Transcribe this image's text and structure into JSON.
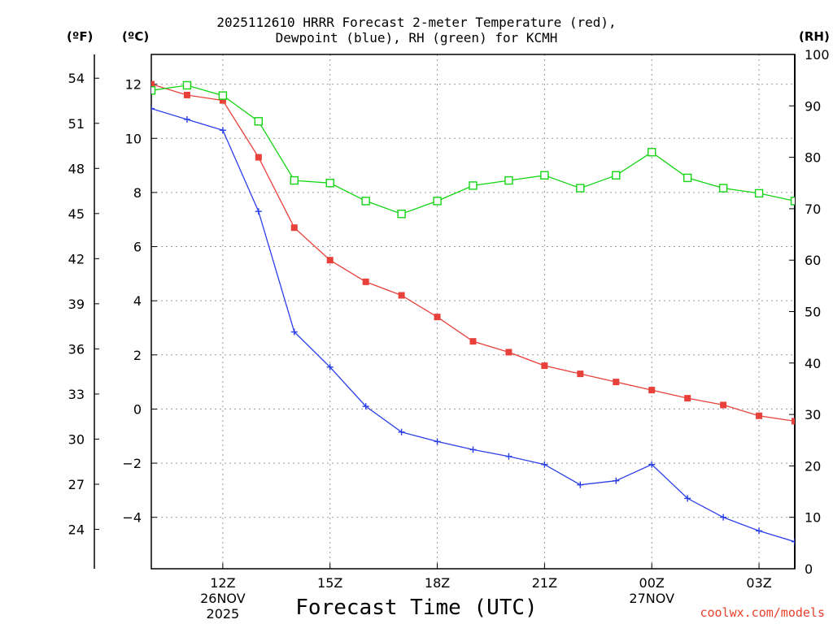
{
  "title_line1": "2025112610 HRRR Forecast 2-meter Temperature (red),",
  "title_line2": "Dewpoint (blue), RH (green) for KCMH",
  "units": {
    "fahrenheit": "(ºF)",
    "celsius": "(ºC)",
    "rh": "(RH)"
  },
  "xlabel": "Forecast Time (UTC)",
  "credit": "coolwx.com/models",
  "colors": {
    "temperature": "#e8403a",
    "dewpoint": "#2a3fe8",
    "rh": "#14d414",
    "grid": "#9a9a9a"
  },
  "chart_data": {
    "type": "line",
    "x_hours": [
      10,
      11,
      12,
      13,
      14,
      15,
      16,
      17,
      18,
      19,
      20,
      21,
      22,
      23,
      24,
      25,
      26,
      27,
      28
    ],
    "xlim": [
      10,
      28
    ],
    "x_ticks": [
      {
        "hour": 12,
        "label": "12Z",
        "date_line1": "26NOV",
        "date_line2": "2025"
      },
      {
        "hour": 15,
        "label": "15Z",
        "date_line1": "",
        "date_line2": ""
      },
      {
        "hour": 18,
        "label": "18Z",
        "date_line1": "",
        "date_line2": ""
      },
      {
        "hour": 21,
        "label": "21Z",
        "date_line1": "",
        "date_line2": ""
      },
      {
        "hour": 24,
        "label": "00Z",
        "date_line1": "27NOV",
        "date_line2": ""
      },
      {
        "hour": 27,
        "label": "03Z",
        "date_line1": "",
        "date_line2": ""
      }
    ],
    "celsius_axis": {
      "ylim": [
        -5.9,
        13.1
      ],
      "ticks": [
        12,
        10,
        8,
        6,
        4,
        2,
        0,
        -2,
        -4
      ]
    },
    "fahrenheit_axis": {
      "ticks": [
        54,
        51,
        48,
        45,
        42,
        39,
        36,
        33,
        30,
        27,
        24
      ]
    },
    "rh_axis": {
      "ylim": [
        0,
        100
      ],
      "ticks": [
        100,
        90,
        80,
        70,
        60,
        50,
        40,
        30,
        20,
        10,
        0
      ]
    },
    "series": [
      {
        "name": "Temperature",
        "units": "C",
        "marker": "filled-square",
        "values": [
          12.0,
          11.6,
          11.4,
          9.3,
          6.7,
          5.5,
          4.7,
          4.2,
          3.4,
          2.5,
          2.1,
          1.6,
          1.3,
          1.0,
          0.7,
          0.4,
          0.15,
          -0.25,
          -0.45
        ]
      },
      {
        "name": "Dewpoint",
        "units": "C",
        "marker": "plus",
        "values": [
          11.1,
          10.7,
          10.3,
          7.3,
          2.85,
          1.55,
          0.1,
          -0.85,
          -1.2,
          -1.5,
          -1.75,
          -2.05,
          -2.8,
          -2.65,
          -2.05,
          -3.3,
          -4.0,
          -4.5,
          -4.9
        ]
      },
      {
        "name": "RH",
        "units": "%",
        "marker": "open-square",
        "values": [
          93,
          94,
          92,
          87,
          75.5,
          75,
          71.5,
          69,
          71.5,
          74.5,
          75.5,
          76.5,
          74,
          76.5,
          81,
          76,
          74,
          73,
          71.5
        ]
      }
    ]
  }
}
